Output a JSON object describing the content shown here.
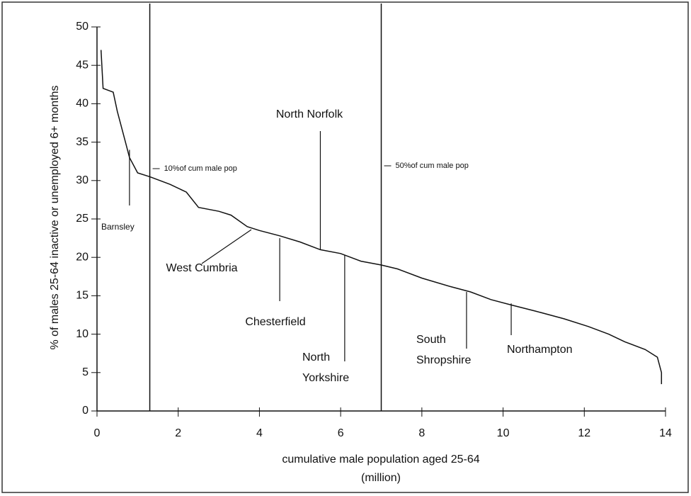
{
  "chart_data": {
    "type": "line",
    "x_label": "cumulative male population aged 25-64",
    "x_label_unit": "(million)",
    "y_label": "% of males 25-64 inactive or unemployed 6+ months",
    "xlim": [
      0,
      14
    ],
    "xticks": [
      0,
      2,
      4,
      6,
      8,
      10,
      12,
      14
    ],
    "ylim": [
      0,
      50
    ],
    "yticks": [
      0,
      5,
      10,
      15,
      20,
      25,
      30,
      35,
      40,
      45,
      50
    ],
    "grid": false,
    "series": [
      {
        "color": "#000000",
        "x": [
          0.1,
          0.15,
          0.4,
          0.5,
          0.7,
          0.8,
          1.0,
          1.3,
          1.8,
          2.2,
          2.5,
          3.0,
          3.3,
          3.7,
          4.0,
          4.5,
          5.0,
          5.5,
          6.0,
          6.5,
          7.0,
          7.4,
          8.0,
          8.7,
          9.2,
          9.7,
          10.2,
          10.8,
          11.5,
          12.1,
          12.6,
          13.0,
          13.5,
          13.8,
          13.9,
          13.9
        ],
        "values": [
          47,
          42,
          41.5,
          39,
          35,
          33,
          31,
          30.5,
          29.5,
          28.5,
          26.5,
          26,
          25.5,
          24,
          23.5,
          22.8,
          22,
          21,
          20.5,
          19.5,
          19,
          18.5,
          17.3,
          16.2,
          15.5,
          14.5,
          13.8,
          13,
          12,
          11,
          10,
          9,
          8,
          7,
          5,
          3.5
        ]
      }
    ],
    "reference_lines": [
      {
        "x": 1.3,
        "label": "10%of cum male pop"
      },
      {
        "x": 7.0,
        "label": "50%of cum male pop"
      }
    ],
    "annotations": [
      {
        "text": [
          "Barnsley"
        ],
        "x": 0.8,
        "y": 34
      },
      {
        "text": [
          "North Norfolk"
        ],
        "x": 5.5,
        "y": 21
      },
      {
        "text": [
          "West Cumbria"
        ],
        "x": 3.8,
        "y": 23.6
      },
      {
        "text": [
          "Chesterfield"
        ],
        "x": 4.5,
        "y": 22.5
      },
      {
        "text": [
          "North",
          "Yorkshire"
        ],
        "x": 6.1,
        "y": 20.3
      },
      {
        "text": [
          "South",
          "Shropshire"
        ],
        "x": 9.1,
        "y": 15.5
      },
      {
        "text": [
          "Northampton"
        ],
        "x": 10.2,
        "y": 14
      }
    ]
  }
}
